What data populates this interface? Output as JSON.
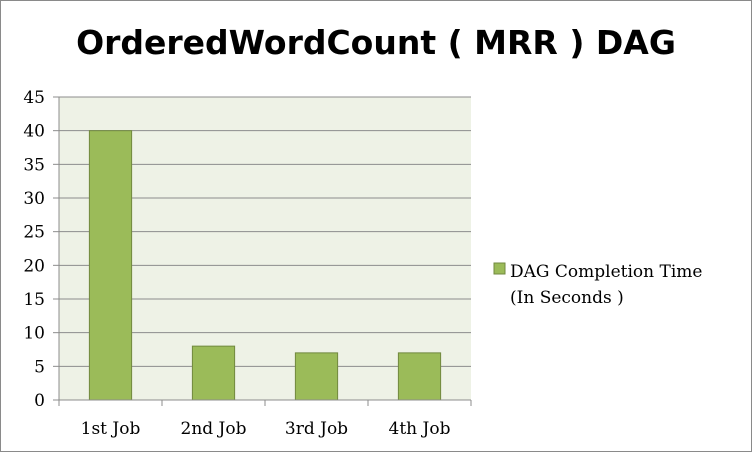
{
  "chart_data": {
    "type": "bar",
    "title": "OrderedWordCount ( MRR ) DAG",
    "categories": [
      "1st Job",
      "2nd Job",
      "3rd Job",
      "4th Job"
    ],
    "series": [
      {
        "name_lines": [
          "DAG Completion Time",
          "(In Seconds )"
        ],
        "values": [
          40,
          8,
          7,
          7
        ],
        "color": "#9bbb59"
      }
    ],
    "ylim": [
      0,
      45
    ],
    "yticks": [
      0,
      5,
      10,
      15,
      20,
      25,
      30,
      35,
      40,
      45
    ],
    "grid": true,
    "legend_position": "right",
    "plot_background": "#eef2e6",
    "bar_border_color": "#71893f"
  }
}
